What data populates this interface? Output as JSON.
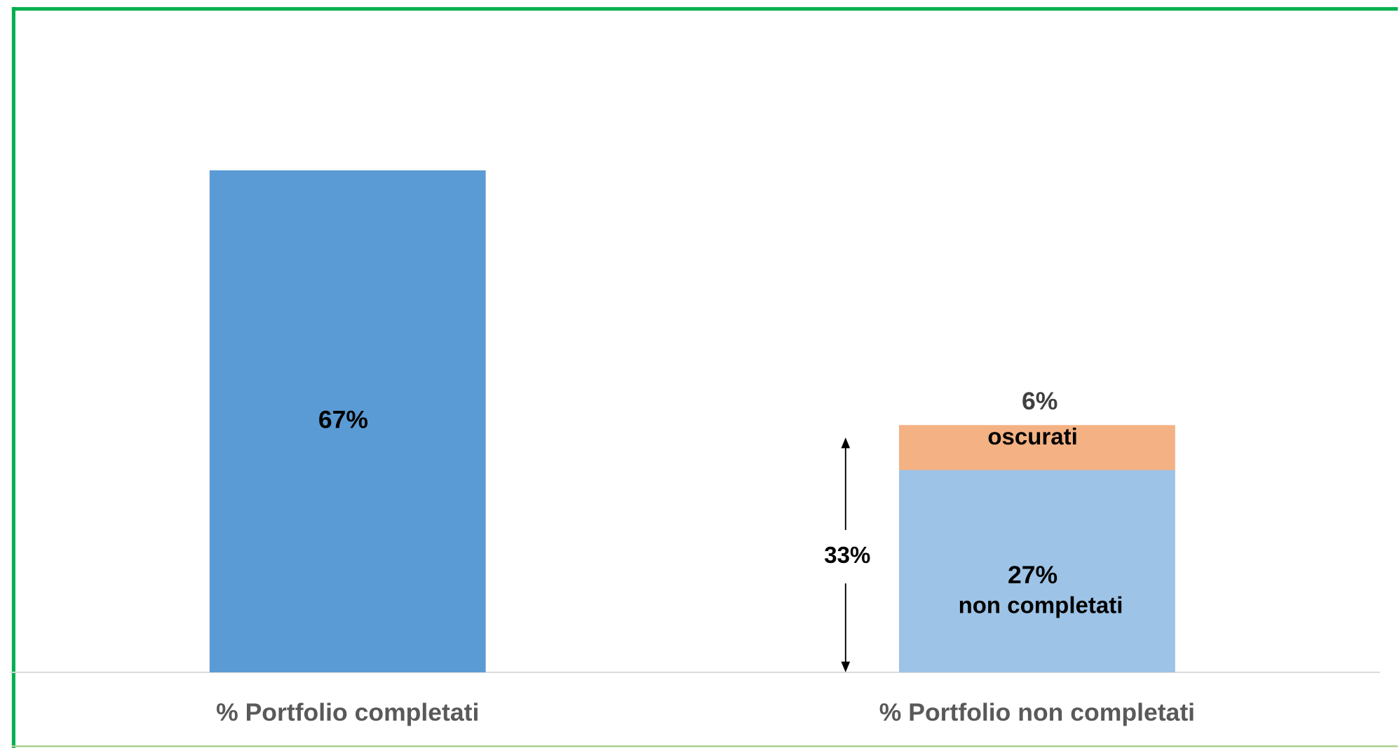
{
  "chart_data": {
    "type": "stacked_bar",
    "categories": [
      "% Portfolio completati",
      "% Portfolio non completati"
    ],
    "series": [
      {
        "color": "#5b9bd5",
        "values": [
          67,
          null
        ],
        "value_labels": [
          "67%",
          null
        ]
      },
      {
        "name": "non completati",
        "color": "#9dc3e6",
        "values": [
          null,
          27
        ],
        "value_labels": [
          null,
          "27%"
        ]
      },
      {
        "name": "oscurati",
        "color": "#f4b183",
        "values": [
          null,
          6
        ],
        "value_labels": [
          null,
          "6%"
        ]
      }
    ],
    "ylim": [
      0,
      75
    ],
    "annotations": [
      {
        "label": "33%",
        "value": 33
      }
    ]
  }
}
